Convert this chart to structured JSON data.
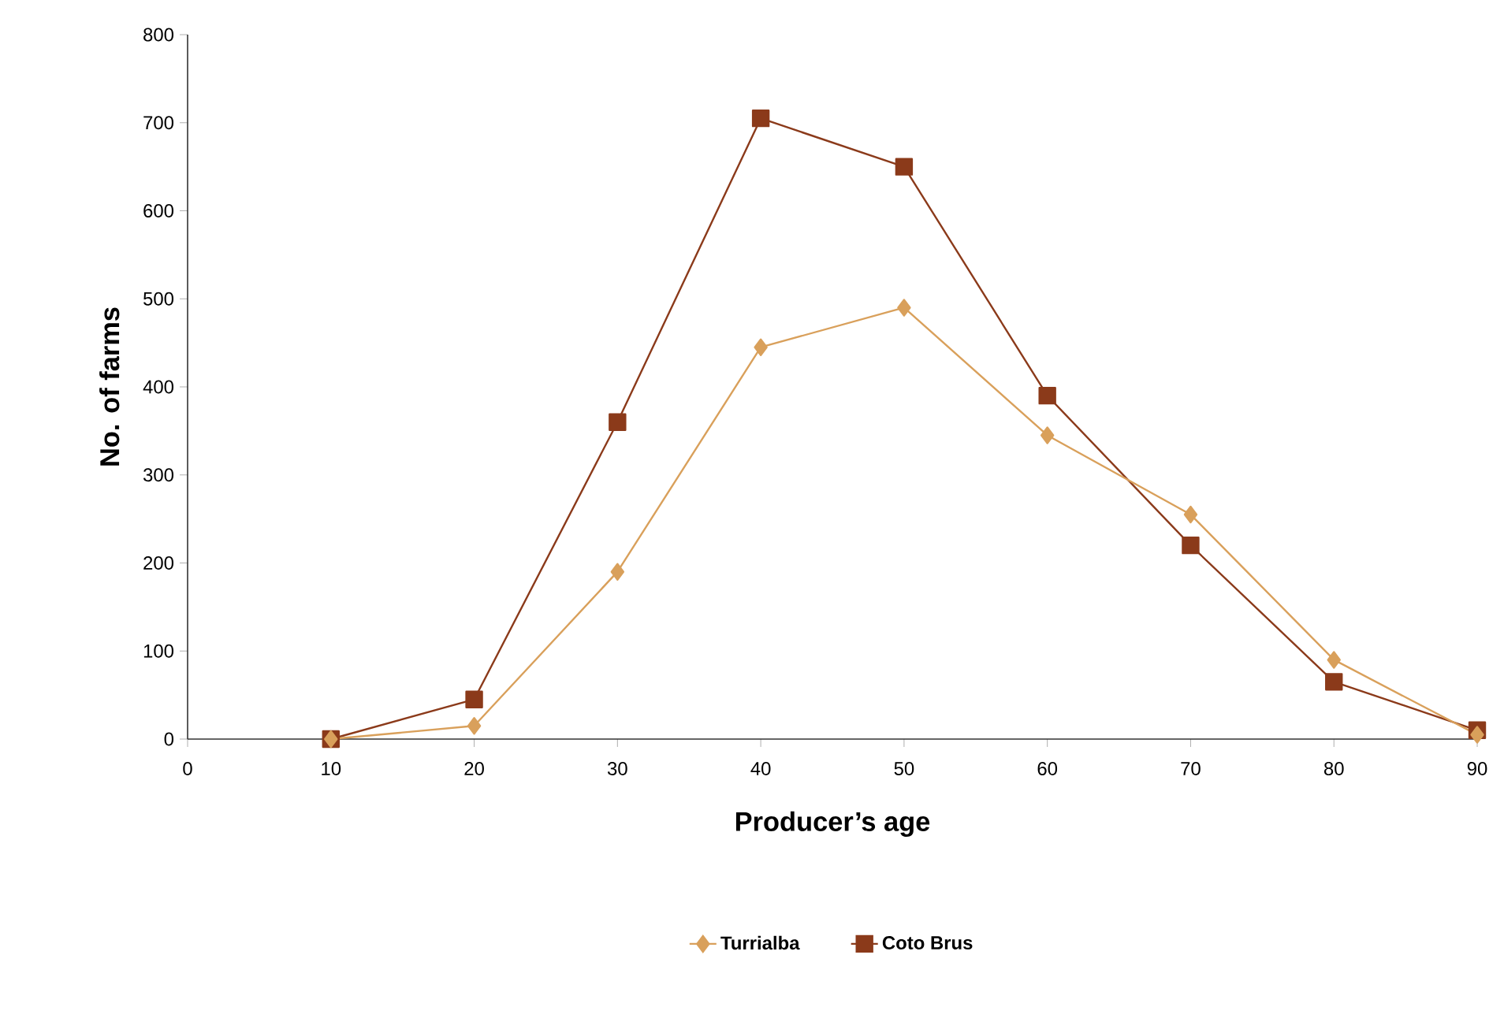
{
  "chart_data": {
    "type": "line",
    "xlabel": "Producer’s age",
    "ylabel": "No. of farms",
    "x": [
      10,
      20,
      30,
      40,
      50,
      60,
      70,
      80,
      90
    ],
    "series": [
      {
        "name": "Turrialba",
        "color": "#d9a05b",
        "marker": "diamond",
        "values": [
          0,
          15,
          190,
          445,
          490,
          345,
          255,
          90,
          5
        ]
      },
      {
        "name": "Coto Brus",
        "color": "#8b3a1a",
        "marker": "square",
        "values": [
          0,
          45,
          360,
          705,
          650,
          390,
          220,
          65,
          10
        ]
      }
    ],
    "xlim": [
      0,
      90
    ],
    "xticks": [
      0,
      10,
      20,
      30,
      40,
      50,
      60,
      70,
      80,
      90
    ],
    "ylim": [
      0,
      800
    ],
    "yticks": [
      0,
      100,
      200,
      300,
      400,
      500,
      600,
      700,
      800
    ],
    "grid": false,
    "legend": "bottom",
    "line_style": "solid"
  }
}
